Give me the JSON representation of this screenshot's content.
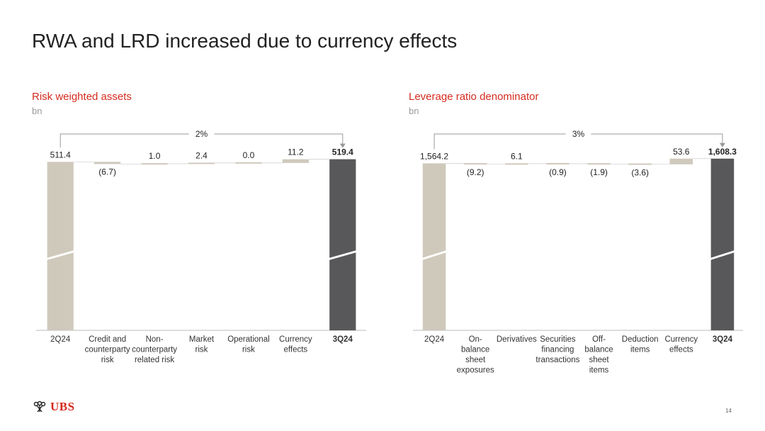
{
  "title": "RWA and LRD increased due to currency effects",
  "page_number": "14",
  "logo": {
    "text": "UBS",
    "icon": "keys-icon"
  },
  "colors": {
    "accent": "#d52b1e",
    "bar": "#cfc9bc",
    "total_bar": "#58585a",
    "subtitle": "#9a9a9a"
  },
  "chart_data": [
    {
      "type": "bar",
      "variant": "waterfall",
      "title": "Risk weighted assets",
      "subtitle": "bn",
      "ylim": [
        0,
        525
      ],
      "axis_break": true,
      "growth_label": "2%",
      "categories": [
        [
          "2Q24"
        ],
        [
          "Credit and",
          "counterparty",
          "risk"
        ],
        [
          "Non-",
          "counterparty",
          "related risk"
        ],
        [
          "Market",
          "risk"
        ],
        [
          "Operational",
          "risk"
        ],
        [
          "Currency",
          "effects"
        ],
        [
          "3Q24"
        ]
      ],
      "kinds": [
        "total",
        "delta",
        "delta",
        "delta",
        "delta",
        "delta",
        "total"
      ],
      "values": [
        511.4,
        -6.7,
        1.0,
        2.4,
        0.0,
        11.2,
        519.4
      ],
      "labels": [
        "511.4",
        "(6.7)",
        "1.0",
        "2.4",
        "0.0",
        "11.2",
        "519.4"
      ],
      "bold": [
        false,
        false,
        false,
        false,
        false,
        false,
        true
      ]
    },
    {
      "type": "bar",
      "variant": "waterfall",
      "title": "Leverage ratio denominator",
      "subtitle": "bn",
      "ylim": [
        0,
        1620
      ],
      "axis_break": true,
      "growth_label": "3%",
      "categories": [
        [
          "2Q24"
        ],
        [
          "On-",
          "balance",
          "sheet",
          "exposures"
        ],
        [
          "Derivatives"
        ],
        [
          "Securities",
          "financing",
          "transactions"
        ],
        [
          "Off-",
          "balance",
          "sheet",
          "items"
        ],
        [
          "Deduction",
          "items"
        ],
        [
          "Currency",
          "effects"
        ],
        [
          "3Q24"
        ]
      ],
      "kinds": [
        "total",
        "delta",
        "delta",
        "delta",
        "delta",
        "delta",
        "delta",
        "total"
      ],
      "values": [
        1564.2,
        -9.2,
        6.1,
        -0.9,
        -1.9,
        -3.6,
        53.6,
        1608.3
      ],
      "labels": [
        "1,564.2",
        "(9.2)",
        "6.1",
        "(0.9)",
        "(1.9)",
        "(3.6)",
        "53.6",
        "1,608.3"
      ],
      "bold": [
        false,
        false,
        false,
        false,
        false,
        false,
        false,
        true
      ]
    }
  ]
}
